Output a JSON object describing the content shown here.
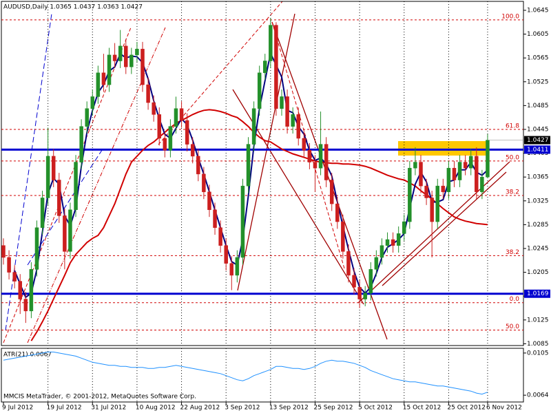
{
  "chart_data": {
    "type": "candlestick",
    "title": "AUDUSD,Daily  1.0365 1.0437 1.0363 1.0427",
    "footer": "MMCIS MetaTrader, © 2001-2012, MetaQuotes Software Corp.",
    "categories": [
      "9 Jul 2012",
      null,
      null,
      null,
      null,
      null,
      null,
      null,
      "19 Jul 2012",
      null,
      null,
      null,
      null,
      null,
      null,
      null,
      "31 Jul 2012",
      null,
      null,
      null,
      null,
      null,
      null,
      null,
      "10 Aug 2012",
      null,
      null,
      null,
      null,
      null,
      null,
      null,
      "22 Aug 2012",
      null,
      null,
      null,
      null,
      null,
      null,
      null,
      "3 Sep 2012",
      null,
      null,
      null,
      null,
      null,
      null,
      null,
      "13 Sep 2012",
      null,
      null,
      null,
      null,
      null,
      null,
      null,
      "25 Sep 2012",
      null,
      null,
      null,
      null,
      null,
      null,
      null,
      "5 Oct 2012",
      null,
      null,
      null,
      null,
      null,
      null,
      null,
      "15 Oct 2012",
      null,
      null,
      null,
      null,
      null,
      null,
      null,
      "25 Oct 2012",
      null,
      null,
      null,
      null,
      null,
      null,
      "6 Nov 2012"
    ],
    "ohlc": [
      [
        1.025,
        1.0262,
        1.0218,
        1.023
      ],
      [
        1.023,
        1.0242,
        1.0193,
        1.0205
      ],
      [
        1.0205,
        1.0217,
        1.0178,
        1.019
      ],
      [
        1.019,
        1.0202,
        1.0135,
        1.016
      ],
      [
        1.016,
        1.0172,
        1.012,
        1.014
      ],
      [
        1.014,
        1.0222,
        1.0128,
        1.021
      ],
      [
        1.021,
        1.0292,
        1.0198,
        1.028
      ],
      [
        1.028,
        1.0342,
        1.0268,
        1.033
      ],
      [
        1.033,
        1.0448,
        1.0318,
        1.04
      ],
      [
        1.04,
        1.0412,
        1.0348,
        1.036
      ],
      [
        1.036,
        1.0372,
        1.0288,
        1.03
      ],
      [
        1.03,
        1.0312,
        1.021,
        1.024
      ],
      [
        1.024,
        1.0322,
        1.0228,
        1.031
      ],
      [
        1.031,
        1.0402,
        1.0298,
        1.039
      ],
      [
        1.039,
        1.0462,
        1.0378,
        1.045
      ],
      [
        1.045,
        1.0492,
        1.0438,
        1.048
      ],
      [
        1.048,
        1.0512,
        1.0468,
        1.05
      ],
      [
        1.05,
        1.0552,
        1.0488,
        1.054
      ],
      [
        1.054,
        1.0572,
        1.0508,
        1.052
      ],
      [
        1.052,
        1.0582,
        1.0508,
        1.057
      ],
      [
        1.057,
        1.059,
        1.0548,
        1.056
      ],
      [
        1.056,
        1.0612,
        1.0548,
        1.0585
      ],
      [
        1.0585,
        1.0597,
        1.0538,
        1.055
      ],
      [
        1.055,
        1.0582,
        1.0538,
        1.057
      ],
      [
        1.057,
        1.0592,
        1.0558,
        1.058
      ],
      [
        1.058,
        1.0592,
        1.0508,
        1.052
      ],
      [
        1.052,
        1.0532,
        1.0478,
        1.049
      ],
      [
        1.049,
        1.0502,
        1.0458,
        1.047
      ],
      [
        1.047,
        1.0482,
        1.0418,
        1.043
      ],
      [
        1.043,
        1.0442,
        1.0398,
        1.041
      ],
      [
        1.041,
        1.0462,
        1.0398,
        1.045
      ],
      [
        1.045,
        1.05,
        1.0438,
        1.048
      ],
      [
        1.048,
        1.0492,
        1.0448,
        1.046
      ],
      [
        1.046,
        1.0472,
        1.0408,
        1.042
      ],
      [
        1.042,
        1.0432,
        1.0388,
        1.04
      ],
      [
        1.04,
        1.0412,
        1.0358,
        1.037
      ],
      [
        1.037,
        1.0382,
        1.0328,
        1.034
      ],
      [
        1.034,
        1.0352,
        1.0298,
        1.031
      ],
      [
        1.031,
        1.0322,
        1.0268,
        1.028
      ],
      [
        1.028,
        1.0292,
        1.0238,
        1.025
      ],
      [
        1.025,
        1.0262,
        1.0208,
        1.022
      ],
      [
        1.022,
        1.0232,
        1.0175,
        1.02
      ],
      [
        1.02,
        1.0242,
        1.0188,
        1.023
      ],
      [
        1.023,
        1.0362,
        1.0218,
        1.035
      ],
      [
        1.035,
        1.0432,
        1.0338,
        1.042
      ],
      [
        1.042,
        1.0492,
        1.0408,
        1.048
      ],
      [
        1.048,
        1.0552,
        1.0468,
        1.054
      ],
      [
        1.054,
        1.0572,
        1.0528,
        1.056
      ],
      [
        1.056,
        1.0632,
        1.0548,
        1.062
      ],
      [
        1.062,
        1.0625,
        1.0468,
        1.048
      ],
      [
        1.048,
        1.0512,
        1.0468,
        1.05
      ],
      [
        1.05,
        1.0512,
        1.0438,
        1.045
      ],
      [
        1.045,
        1.0482,
        1.0438,
        1.047
      ],
      [
        1.047,
        1.0482,
        1.0418,
        1.043
      ],
      [
        1.043,
        1.0442,
        1.0398,
        1.041
      ],
      [
        1.041,
        1.0422,
        1.0378,
        1.039
      ],
      [
        1.039,
        1.0402,
        1.034,
        1.038
      ],
      [
        1.038,
        1.0475,
        1.0368,
        1.042
      ],
      [
        1.042,
        1.0432,
        1.0348,
        1.036
      ],
      [
        1.036,
        1.0372,
        1.0308,
        1.032
      ],
      [
        1.032,
        1.0332,
        1.0278,
        1.029
      ],
      [
        1.029,
        1.0302,
        1.0228,
        1.024
      ],
      [
        1.024,
        1.0252,
        1.0188,
        1.02
      ],
      [
        1.02,
        1.0212,
        1.0168,
        1.018
      ],
      [
        1.018,
        1.0192,
        1.0145,
        1.016
      ],
      [
        1.016,
        1.0182,
        1.0148,
        1.017
      ],
      [
        1.017,
        1.0222,
        1.0158,
        1.021
      ],
      [
        1.021,
        1.0242,
        1.0198,
        1.023
      ],
      [
        1.023,
        1.0262,
        1.0218,
        1.025
      ],
      [
        1.025,
        1.0272,
        1.0238,
        1.026
      ],
      [
        1.026,
        1.0272,
        1.0238,
        1.025
      ],
      [
        1.025,
        1.0282,
        1.0238,
        1.027
      ],
      [
        1.027,
        1.0302,
        1.0258,
        1.029
      ],
      [
        1.029,
        1.0392,
        1.0278,
        1.038
      ],
      [
        1.038,
        1.0415,
        1.0368,
        1.039
      ],
      [
        1.039,
        1.0402,
        1.0338,
        1.035
      ],
      [
        1.035,
        1.0362,
        1.0318,
        1.033
      ],
      [
        1.033,
        1.0342,
        1.023,
        1.029
      ],
      [
        1.029,
        1.0362,
        1.0278,
        1.035
      ],
      [
        1.035,
        1.0362,
        1.0328,
        1.034
      ],
      [
        1.034,
        1.0392,
        1.0328,
        1.038
      ],
      [
        1.038,
        1.0392,
        1.0348,
        1.036
      ],
      [
        1.036,
        1.0402,
        1.0348,
        1.039
      ],
      [
        1.039,
        1.0402,
        1.0368,
        1.038
      ],
      [
        1.038,
        1.0412,
        1.0368,
        1.04
      ],
      [
        1.04,
        1.0415,
        1.0328,
        1.034
      ],
      [
        1.034,
        1.0377,
        1.0328,
        1.0365
      ],
      [
        1.0365,
        1.0437,
        1.0363,
        1.0427
      ]
    ],
    "up_color": "#23902a",
    "down_color": "#cc1f1f",
    "overlays": [
      {
        "color": "#d10000",
        "values": [
          null,
          null,
          null,
          null,
          null,
          1.009,
          1.0105,
          1.0122,
          1.014,
          1.016,
          1.018,
          1.02,
          1.0221,
          1.0235,
          1.0245,
          1.0255,
          1.0262,
          1.0267,
          1.028,
          1.03,
          1.032,
          1.0345,
          1.037,
          1.039,
          1.04,
          1.041,
          1.0418,
          1.0424,
          1.0432,
          1.044,
          1.0448,
          1.0455,
          1.046,
          1.0465,
          1.047,
          1.0474,
          1.0477,
          1.0478,
          1.0477,
          1.0475,
          1.0472,
          1.0468,
          1.0465,
          1.0458,
          1.045,
          1.044,
          1.0432,
          1.0426,
          1.0424,
          1.0418,
          1.0412,
          1.0408,
          1.0404,
          1.0401,
          1.0398,
          1.0395,
          1.0392,
          1.039,
          1.0389,
          1.0388,
          1.0388,
          1.0387,
          1.0387,
          1.0386,
          1.0385,
          1.0383,
          1.038,
          1.0376,
          1.0372,
          1.0368,
          1.0365,
          1.0362,
          1.036,
          1.0355,
          1.035,
          1.0342,
          1.0335,
          1.0328,
          1.032,
          1.0312,
          1.0305,
          1.0298,
          1.0294,
          1.0291,
          1.0289,
          1.0287,
          1.0286,
          1.0285
        ]
      },
      {
        "color": "#000080",
        "values": [
          null,
          null,
          1.0208,
          1.0185,
          1.0163,
          1.017,
          1.021,
          1.0273,
          1.0337,
          1.0363,
          1.0353,
          1.03,
          1.0283,
          1.0313,
          1.0383,
          1.044,
          1.0477,
          1.0507,
          1.052,
          1.0543,
          1.055,
          1.0572,
          1.0565,
          1.0568,
          1.0567,
          1.0557,
          1.053,
          1.0493,
          1.0463,
          1.0437,
          1.043,
          1.0447,
          1.0463,
          1.0453,
          1.0427,
          1.0397,
          1.037,
          1.034,
          1.031,
          1.028,
          1.025,
          1.0223,
          1.0217,
          1.026,
          1.0333,
          1.0417,
          1.048,
          1.0527,
          1.0573,
          1.0553,
          1.0533,
          1.0477,
          1.0473,
          1.045,
          1.0437,
          1.041,
          1.0393,
          1.0397,
          1.0387,
          1.0367,
          1.0323,
          1.0283,
          1.0243,
          1.0207,
          1.018,
          1.017,
          1.018,
          1.0203,
          1.023,
          1.0247,
          1.0253,
          1.026,
          1.027,
          1.0313,
          1.0353,
          1.0373,
          1.0357,
          1.0323,
          1.0323,
          1.0327,
          1.0357,
          1.036,
          1.0377,
          1.0377,
          1.039,
          1.0373,
          1.0368,
          1.0377
        ]
      }
    ],
    "ylim": [
      1.0082,
      1.066
    ],
    "yticks": [
      1.0645,
      1.0605,
      1.0565,
      1.0525,
      1.0485,
      1.0445,
      1.0405,
      1.0365,
      1.0325,
      1.0285,
      1.0245,
      1.0205,
      1.0165,
      1.0125,
      1.0085
    ],
    "grid": true,
    "hlines": [
      {
        "value": 1.0411,
        "color": "#0000d0"
      },
      {
        "value": 1.0169,
        "color": "#0000d0"
      }
    ],
    "last_price": 1.0427,
    "fib_color": "#d10000",
    "fib_levels": [
      {
        "label": "100.0",
        "value": 1.0629
      },
      {
        "label": "61.8",
        "value": 1.0445
      },
      {
        "label": "50.0",
        "value": 1.0392
      },
      {
        "label": "38.2",
        "value": 1.0334
      },
      {
        "label": "38.2",
        "value": 1.0233
      },
      {
        "label": "0.0",
        "value": 1.0154
      },
      {
        "label": "50.0",
        "value": 1.0108
      }
    ],
    "atr": {
      "type": "line",
      "title": "ATR(21) 0.0067",
      "color": "#1e90ff",
      "values": [
        0.0098,
        0.0099,
        0.01,
        0.0101,
        0.0102,
        0.0103,
        0.0104,
        0.0105,
        0.0106,
        0.0106,
        0.0105,
        0.0104,
        0.0103,
        0.0102,
        0.01,
        0.0098,
        0.0096,
        0.0095,
        0.0094,
        0.0093,
        0.0093,
        0.0092,
        0.0092,
        0.0091,
        0.0091,
        0.0091,
        0.009,
        0.009,
        0.0091,
        0.0091,
        0.0092,
        0.0093,
        0.0092,
        0.0091,
        0.009,
        0.0089,
        0.0088,
        0.0087,
        0.0086,
        0.0085,
        0.0083,
        0.0081,
        0.0079,
        0.0078,
        0.008,
        0.0083,
        0.0085,
        0.0087,
        0.0089,
        0.0092,
        0.0092,
        0.0091,
        0.009,
        0.009,
        0.0089,
        0.009,
        0.0092,
        0.0095,
        0.0097,
        0.0098,
        0.0097,
        0.0097,
        0.0096,
        0.0095,
        0.0093,
        0.0091,
        0.0088,
        0.0086,
        0.0084,
        0.0082,
        0.008,
        0.0079,
        0.0078,
        0.0077,
        0.0077,
        0.0076,
        0.0075,
        0.0074,
        0.0073,
        0.0073,
        0.0072,
        0.0071,
        0.007,
        0.0069,
        0.0068,
        0.0066,
        0.0065,
        0.0067
      ],
      "ylim": [
        0.00574,
        0.01096
      ],
      "yticks": [
        0.0105,
        0.0064
      ]
    }
  }
}
